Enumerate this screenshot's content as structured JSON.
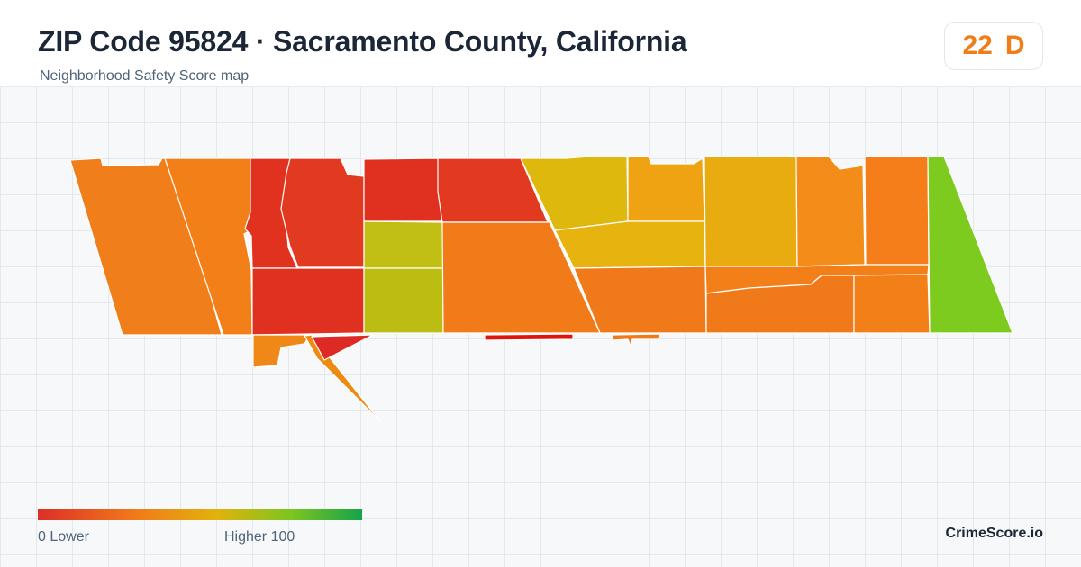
{
  "header": {
    "title": "ZIP Code 95824 · Sacramento County, California",
    "subtitle": "Neighborhood Safety Score map"
  },
  "score": {
    "value": "22",
    "grade": "D",
    "color": "#ef7d1a"
  },
  "legend": {
    "low_label": "0  Lower",
    "high_label": "Higher  100",
    "min": 0,
    "max": 100,
    "colors": [
      "#dc2f27",
      "#f07a1b",
      "#e2b20c",
      "#7ec51f",
      "#15a34a"
    ]
  },
  "brand": "CrimeScore.io"
}
